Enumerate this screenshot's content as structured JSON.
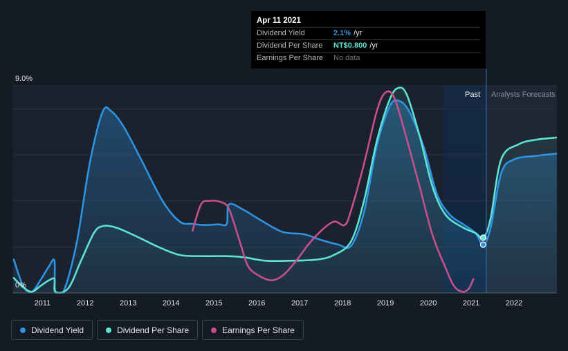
{
  "chart_data": {
    "type": "line",
    "title": "",
    "y_unit": "%",
    "ylim": [
      0,
      9.0
    ],
    "y_tick_labels": [
      "9.0%",
      "0%"
    ],
    "x_range": [
      2010.3,
      2023.0
    ],
    "x_tick_labels": [
      "2011",
      "2012",
      "2013",
      "2014",
      "2015",
      "2016",
      "2017",
      "2018",
      "2019",
      "2020",
      "2021",
      "2022"
    ],
    "regions": {
      "past": "Past",
      "forecast": "Analysts Forecasts",
      "divider_x": 2021.28
    },
    "series": [
      {
        "name": "Dividend Yield",
        "color": "#2e93e3",
        "points": [
          [
            2010.33,
            1.45
          ],
          [
            2010.55,
            0.3
          ],
          [
            2010.75,
            0.05
          ],
          [
            2010.95,
            0.55
          ],
          [
            2011.15,
            1.15
          ],
          [
            2011.28,
            1.4
          ],
          [
            2011.3,
            0.05
          ],
          [
            2011.5,
            0.1
          ],
          [
            2011.8,
            2.2
          ],
          [
            2012.1,
            5.6
          ],
          [
            2012.4,
            7.85
          ],
          [
            2012.6,
            7.9
          ],
          [
            2012.9,
            7.2
          ],
          [
            2013.3,
            5.8
          ],
          [
            2013.8,
            4.0
          ],
          [
            2014.2,
            3.1
          ],
          [
            2014.5,
            3.0
          ],
          [
            2014.8,
            2.95
          ],
          [
            2015.1,
            2.98
          ],
          [
            2015.3,
            3.0
          ],
          [
            2015.35,
            3.85
          ],
          [
            2015.7,
            3.6
          ],
          [
            2016.1,
            3.15
          ],
          [
            2016.6,
            2.65
          ],
          [
            2017.1,
            2.55
          ],
          [
            2017.5,
            2.3
          ],
          [
            2017.9,
            2.1
          ],
          [
            2018.2,
            2.05
          ],
          [
            2018.5,
            3.5
          ],
          [
            2018.8,
            6.4
          ],
          [
            2019.1,
            8.1
          ],
          [
            2019.3,
            8.35
          ],
          [
            2019.55,
            7.9
          ],
          [
            2019.9,
            6.3
          ],
          [
            2020.2,
            4.3
          ],
          [
            2020.5,
            3.4
          ],
          [
            2020.8,
            3.0
          ],
          [
            2021.1,
            2.6
          ],
          [
            2021.28,
            2.1
          ],
          [
            2021.45,
            2.8
          ],
          [
            2021.7,
            5.2
          ],
          [
            2022.0,
            5.8
          ],
          [
            2022.5,
            5.95
          ],
          [
            2023.0,
            6.05
          ]
        ]
      },
      {
        "name": "Dividend Per Share",
        "color": "#5de3d3",
        "points": [
          [
            2010.33,
            0.65
          ],
          [
            2010.55,
            0.25
          ],
          [
            2010.75,
            0.05
          ],
          [
            2010.95,
            0.3
          ],
          [
            2011.15,
            0.55
          ],
          [
            2011.28,
            0.6
          ],
          [
            2011.3,
            0.05
          ],
          [
            2011.6,
            0.2
          ],
          [
            2011.9,
            1.4
          ],
          [
            2012.2,
            2.6
          ],
          [
            2012.4,
            2.9
          ],
          [
            2012.7,
            2.85
          ],
          [
            2013.2,
            2.45
          ],
          [
            2013.7,
            2.0
          ],
          [
            2014.2,
            1.65
          ],
          [
            2014.7,
            1.6
          ],
          [
            2015.3,
            1.6
          ],
          [
            2015.7,
            1.55
          ],
          [
            2016.2,
            1.4
          ],
          [
            2016.8,
            1.4
          ],
          [
            2017.4,
            1.45
          ],
          [
            2017.8,
            1.65
          ],
          [
            2018.2,
            2.25
          ],
          [
            2018.5,
            4.0
          ],
          [
            2018.8,
            6.6
          ],
          [
            2019.1,
            8.4
          ],
          [
            2019.3,
            8.9
          ],
          [
            2019.5,
            8.6
          ],
          [
            2019.8,
            6.8
          ],
          [
            2020.1,
            4.6
          ],
          [
            2020.4,
            3.4
          ],
          [
            2020.8,
            2.85
          ],
          [
            2021.1,
            2.6
          ],
          [
            2021.28,
            2.4
          ],
          [
            2021.45,
            3.2
          ],
          [
            2021.7,
            5.8
          ],
          [
            2022.1,
            6.45
          ],
          [
            2022.5,
            6.65
          ],
          [
            2023.0,
            6.75
          ]
        ]
      },
      {
        "name": "Earnings Per Share",
        "color": "#c64f8c",
        "points": [
          [
            2014.5,
            2.7
          ],
          [
            2014.7,
            3.85
          ],
          [
            2014.9,
            4.0
          ],
          [
            2015.15,
            3.95
          ],
          [
            2015.35,
            3.65
          ],
          [
            2015.6,
            2.25
          ],
          [
            2015.8,
            1.15
          ],
          [
            2016.1,
            0.7
          ],
          [
            2016.35,
            0.55
          ],
          [
            2016.6,
            0.75
          ],
          [
            2016.9,
            1.35
          ],
          [
            2017.2,
            2.1
          ],
          [
            2017.5,
            2.7
          ],
          [
            2017.8,
            3.1
          ],
          [
            2018.05,
            2.95
          ],
          [
            2018.2,
            3.6
          ],
          [
            2018.5,
            5.6
          ],
          [
            2018.8,
            7.9
          ],
          [
            2019.0,
            8.7
          ],
          [
            2019.2,
            8.5
          ],
          [
            2019.45,
            7.0
          ],
          [
            2019.8,
            4.6
          ],
          [
            2020.1,
            2.5
          ],
          [
            2020.4,
            1.1
          ],
          [
            2020.6,
            0.3
          ],
          [
            2020.8,
            0.05
          ],
          [
            2020.95,
            0.2
          ],
          [
            2021.05,
            0.6
          ]
        ]
      }
    ]
  },
  "tooltip": {
    "date": "Apr 11 2021",
    "rows": [
      {
        "label": "Dividend Yield",
        "value": "2.1%",
        "unit": "/yr",
        "color": "#2e93e3"
      },
      {
        "label": "Dividend Per Share",
        "value": "NT$0.800",
        "unit": "/yr",
        "color": "#5de3d3"
      },
      {
        "label": "Earnings Per Share",
        "no_data": "No data"
      }
    ]
  },
  "legend": [
    {
      "label": "Dividend Yield",
      "color": "#2e93e3"
    },
    {
      "label": "Dividend Per Share",
      "color": "#5de3d3"
    },
    {
      "label": "Earnings Per Share",
      "color": "#c64f8c"
    }
  ]
}
